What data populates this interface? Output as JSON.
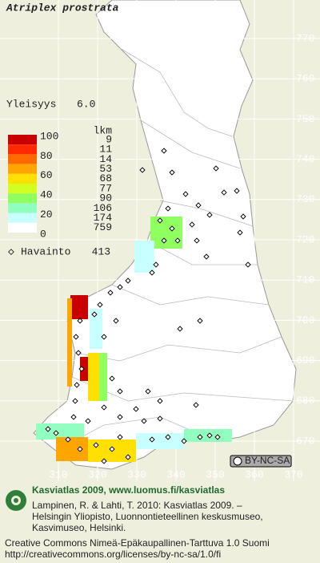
{
  "title": "Atriplex prostrata",
  "frequency": {
    "label": "Yleisyys",
    "value": "6.0"
  },
  "legend": {
    "scale": [
      100,
      80,
      60,
      40,
      20,
      0
    ],
    "count_header": "lkm",
    "classes": [
      {
        "count": 9,
        "color": "#c80000"
      },
      {
        "count": 11,
        "color": "#ff2a00"
      },
      {
        "count": 14,
        "color": "#ff6a00"
      },
      {
        "count": 53,
        "color": "#ffa500"
      },
      {
        "count": 68,
        "color": "#ffe000"
      },
      {
        "count": 77,
        "color": "#d2ff20"
      },
      {
        "count": 90,
        "color": "#90ff60"
      },
      {
        "count": 106,
        "color": "#90ffc0"
      },
      {
        "count": 174,
        "color": "#c8ffff"
      },
      {
        "count": 759,
        "color": "#ffffff"
      }
    ]
  },
  "observations": {
    "label": "Havainto",
    "count": 413
  },
  "grid": {
    "north": [
      770,
      760,
      750,
      740,
      730,
      720,
      710,
      700,
      690,
      680,
      670
    ],
    "east": [
      310,
      320,
      330,
      340,
      350,
      360,
      370
    ]
  },
  "license_badge": "BY-NC-SA",
  "footer": {
    "title": "Kasviatlas 2009, www.luomus.fi/kasviatlas",
    "citation": [
      "Lampinen, R. & Lahti, T. 2010: Kasviatlas 2009. –",
      "Helsingin Yliopisto, Luonnontieteellinen keskusmuseo,",
      "Kasvimuseo, Helsinki."
    ],
    "license": [
      "Creative Commons Nimeä-Epäkaupallinen-Tarttuva 1.0 Suomi",
      "http://creativecommons.org/licenses/by-nc-sa/1.0/fi"
    ]
  }
}
